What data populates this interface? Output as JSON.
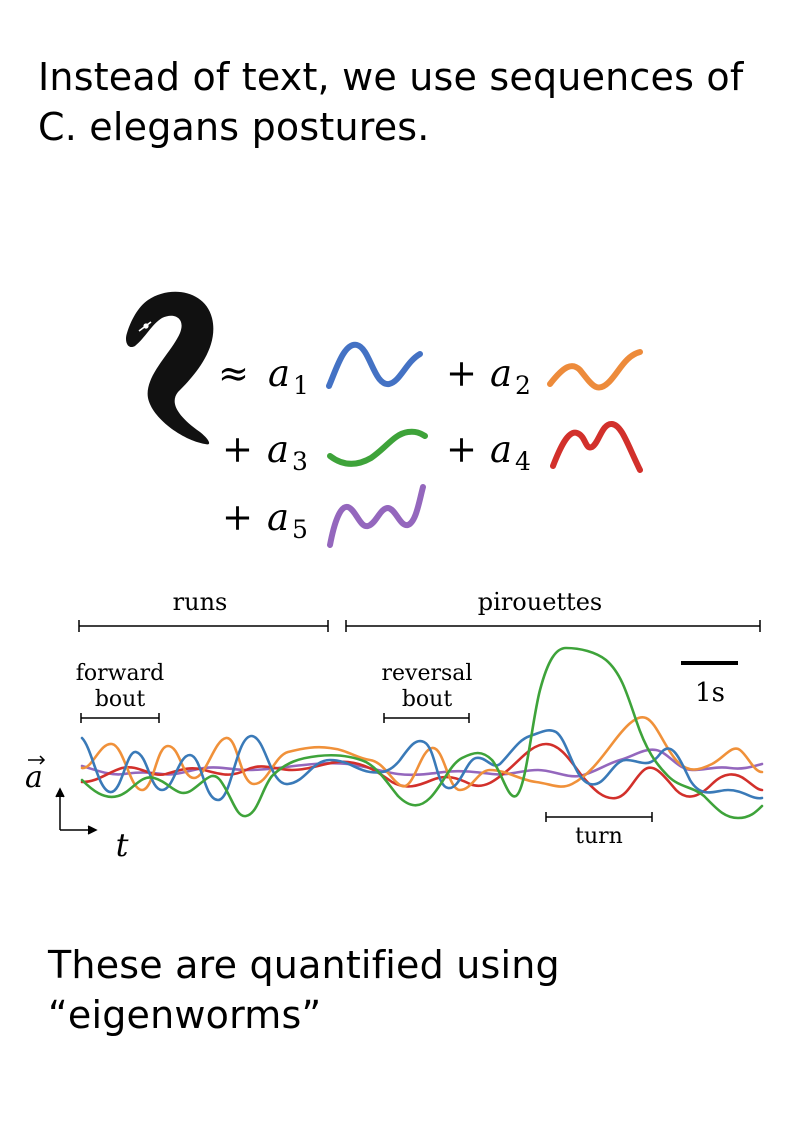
{
  "slide": {
    "title": "Instead of text, we use sequences of C. elegans postures.",
    "caption": "These are quantified using “eigenworms”"
  },
  "equation": {
    "approx": "≈",
    "plus": "+",
    "coef_symbol": "a",
    "terms": [
      {
        "index": "1",
        "color": "#4472c4"
      },
      {
        "index": "2",
        "color": "#ed8b3b"
      },
      {
        "index": "3",
        "color": "#3ea33a"
      },
      {
        "index": "4",
        "color": "#d2302b"
      },
      {
        "index": "5",
        "color": "#9467bd"
      }
    ],
    "worm_color": "#111111"
  },
  "timeline": {
    "runs": "runs",
    "pirouettes": "pirouettes",
    "forward_bout_1": "forward",
    "forward_bout_2": "bout",
    "reversal_bout_1": "reversal",
    "reversal_bout_2": "bout",
    "scale": "1s",
    "turn": "turn",
    "y_axis": "a",
    "x_axis": "t"
  },
  "trace_colors": {
    "a1": "#3a7ab8",
    "a2": "#f0913a",
    "a3": "#3ea33a",
    "a4": "#d2302b",
    "a5": "#9467bd"
  }
}
